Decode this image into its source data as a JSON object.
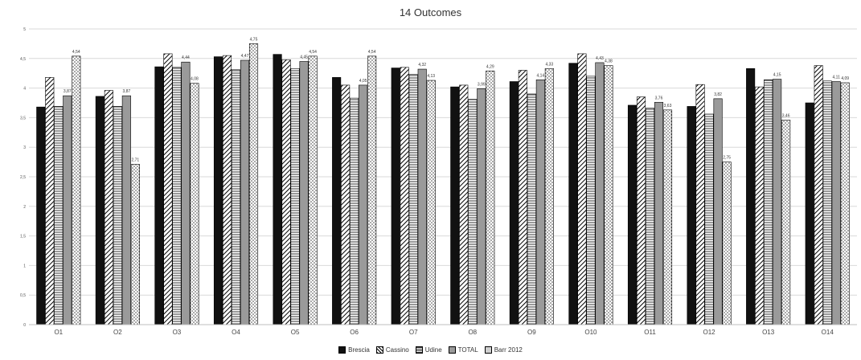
{
  "chart_data": {
    "type": "bar",
    "title": "14 Outcomes",
    "categories": [
      "O1",
      "O2",
      "O3",
      "O4",
      "O5",
      "O6",
      "O7",
      "O8",
      "O9",
      "O10",
      "O11",
      "O12",
      "O13",
      "O14"
    ],
    "ylim": [
      0,
      5
    ],
    "yticks": [
      0,
      0.5,
      1,
      1.5,
      2,
      2.5,
      3,
      3.5,
      4,
      4.5,
      5
    ],
    "ytick_labels": [
      "0",
      "0,5",
      "1",
      "1,5",
      "2",
      "2,5",
      "3",
      "3,5",
      "4",
      "4,5",
      "5"
    ],
    "legend_position": "bottom",
    "grid": true,
    "series": [
      {
        "name": "Brescia",
        "values": [
          3.68,
          3.86,
          4.36,
          4.53,
          4.57,
          4.18,
          4.34,
          4.02,
          4.11,
          4.42,
          3.71,
          3.69,
          4.33,
          3.75
        ]
      },
      {
        "name": "Cassino",
        "values": [
          4.18,
          3.96,
          4.58,
          4.55,
          4.48,
          4.05,
          4.35,
          4.05,
          4.3,
          4.58,
          3.85,
          4.06,
          4.02,
          4.38
        ]
      },
      {
        "name": "Udine",
        "values": [
          3.69,
          3.69,
          4.35,
          4.31,
          4.33,
          3.83,
          4.23,
          3.81,
          3.9,
          4.2,
          3.66,
          3.56,
          4.14,
          4.12
        ]
      },
      {
        "name": "TOTAL",
        "values": [
          3.87,
          3.87,
          4.44,
          4.47,
          4.45,
          4.05,
          4.32,
          3.99,
          4.14,
          4.43,
          3.76,
          3.82,
          4.15,
          4.11
        ]
      },
      {
        "name": "Barr 2012",
        "values": [
          4.54,
          2.71,
          4.08,
          4.75,
          4.54,
          4.54,
          4.13,
          4.29,
          4.33,
          4.38,
          3.63,
          2.75,
          3.46,
          4.09
        ]
      }
    ],
    "data_labels": [
      {
        "category": "O1",
        "series": "TOTAL",
        "text": "3,87"
      },
      {
        "category": "O1",
        "series": "Barr 2012",
        "text": "4,54"
      },
      {
        "category": "O2",
        "series": "TOTAL",
        "text": "3,87"
      },
      {
        "category": "O2",
        "series": "Barr 2012",
        "text": "2,71"
      },
      {
        "category": "O3",
        "series": "TOTAL",
        "text": "4,44"
      },
      {
        "category": "O3",
        "series": "Barr 2012",
        "text": "4,08"
      },
      {
        "category": "O4",
        "series": "TOTAL",
        "text": "4,47"
      },
      {
        "category": "O4",
        "series": "Barr 2012",
        "text": "4,75"
      },
      {
        "category": "O5",
        "series": "TOTAL",
        "text": "4,45"
      },
      {
        "category": "O5",
        "series": "Barr 2012",
        "text": "4,54"
      },
      {
        "category": "O6",
        "series": "TOTAL",
        "text": "4,05"
      },
      {
        "category": "O6",
        "series": "Barr 2012",
        "text": "4,54"
      },
      {
        "category": "O7",
        "series": "TOTAL",
        "text": "4,32"
      },
      {
        "category": "O7",
        "series": "Barr 2012",
        "text": "4,13"
      },
      {
        "category": "O8",
        "series": "TOTAL",
        "text": "3,99"
      },
      {
        "category": "O8",
        "series": "Barr 2012",
        "text": "4,29"
      },
      {
        "category": "O9",
        "series": "TOTAL",
        "text": "4,14"
      },
      {
        "category": "O9",
        "series": "Barr 2012",
        "text": "4,33"
      },
      {
        "category": "O10",
        "series": "TOTAL",
        "text": "4,43"
      },
      {
        "category": "O10",
        "series": "Barr 2012",
        "text": "4,38"
      },
      {
        "category": "O11",
        "series": "TOTAL",
        "text": "3,76"
      },
      {
        "category": "O11",
        "series": "Barr 2012",
        "text": "3,63"
      },
      {
        "category": "O12",
        "series": "TOTAL",
        "text": "3,82"
      },
      {
        "category": "O12",
        "series": "Barr 2012",
        "text": "2,75"
      },
      {
        "category": "O13",
        "series": "TOTAL",
        "text": "4,15"
      },
      {
        "category": "O13",
        "series": "Barr 2012",
        "text": "3,46"
      },
      {
        "category": "O14",
        "series": "TOTAL",
        "text": "4,11"
      },
      {
        "category": "O14",
        "series": "Barr 2012",
        "text": "4,09"
      }
    ],
    "series_styles": {
      "Brescia": "solid-black",
      "Cassino": "diagonal-hatch",
      "Udine": "horizontal-lines",
      "TOTAL": "solid-gray",
      "Barr 2012": "dotted"
    }
  }
}
